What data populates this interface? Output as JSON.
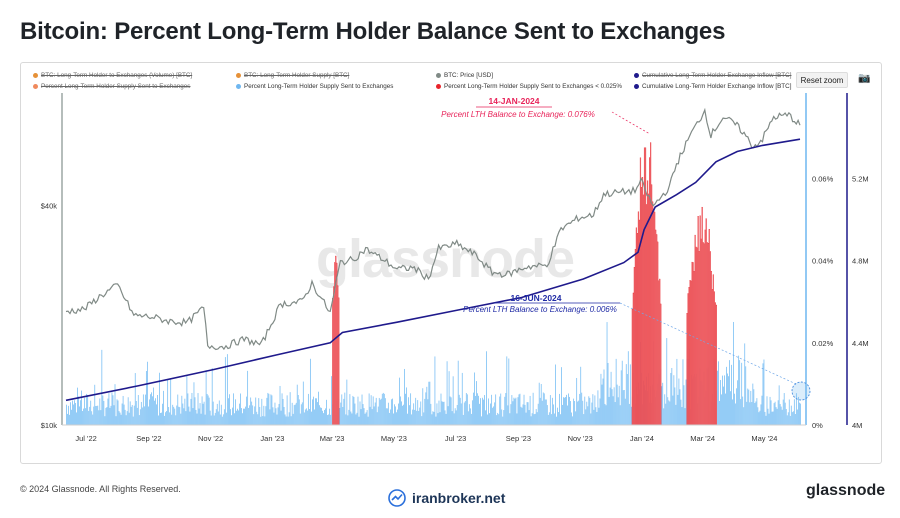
{
  "title": "Bitcoin: Percent Long-Term Holder Balance Sent to Exchanges",
  "legend": {
    "items": [
      {
        "label": "BTC: Long-Term Holder to Exchanges (Volume) [BTC]",
        "color": "#e69138",
        "hidden": true
      },
      {
        "label": "BTC: Long-Term Holder Supply [BTC]",
        "color": "#e69138",
        "hidden": true
      },
      {
        "label": "BTC: Price [USD]",
        "color": "#808a86",
        "hidden": false
      },
      {
        "label": "Cumulative Long-Term Holder Exchange Inflow [BTC]",
        "color": "#1f1a8c",
        "hidden": true
      },
      {
        "label": "Percent Long-Term Holder Supply Sent to Exchanges",
        "color": "#f08a5d",
        "hidden": true
      },
      {
        "label": "Percent Long-Term Holder Supply Sent to Exchanges",
        "color": "#6fb7f0",
        "hidden": false
      },
      {
        "label": "Percent Long-Term Holder Supply Sent to Exchanges < 0.025%",
        "color": "#e8242b",
        "hidden": false
      },
      {
        "label": "Cumulative Long-Term Holder Exchange Inflow [BTC]",
        "color": "#1f1a8c",
        "hidden": false
      }
    ]
  },
  "toolbar": {
    "reset_label": "Reset zoom",
    "camera_icon": "camera-icon"
  },
  "watermark": "glassnode",
  "annotations": [
    {
      "date": "14-JAN-2024",
      "text": "Percent LTH Balance to Exchange: 0.076%",
      "color": "#e8245a"
    },
    {
      "date": "16-JUN-2024",
      "text": "Percent LTH Balance to Exchange: 0.006%",
      "color": "#1f2aa5"
    }
  ],
  "footer": {
    "copyright": "© 2024 Glassnode. All Rights Reserved.",
    "center_logo": "iranbroker.net",
    "brand": "glassnode"
  },
  "chart_data": {
    "type": "bar",
    "x_ticks": [
      "Jul '22",
      "Sep '22",
      "Nov '22",
      "Jan '23",
      "Mar '23",
      "May '23",
      "Jul '23",
      "Sep '23",
      "Nov '23",
      "Jan '24",
      "Mar '24",
      "May '24"
    ],
    "x_range": [
      "2022-06-22",
      "2024-06-16"
    ],
    "price_axis": {
      "ticks": [
        "$10k",
        "$40k"
      ],
      "scale": "log",
      "range": [
        10000,
        80000
      ]
    },
    "percent_axis": {
      "ticks": [
        "0%",
        "0.02%",
        "0.04%",
        "0.06%"
      ],
      "range": [
        0,
        0.08
      ]
    },
    "cumulative_axis": {
      "ticks": [
        "4M",
        "4.4M",
        "4.8M",
        "5.2M"
      ],
      "range": [
        4000000,
        5600000
      ]
    },
    "series": [
      {
        "name": "BTC: Price [USD]",
        "color": "#808a86",
        "points": [
          [
            "2022-06-22",
            20500
          ],
          [
            "2022-07-10",
            20800
          ],
          [
            "2022-07-25",
            22500
          ],
          [
            "2022-08-12",
            24200
          ],
          [
            "2022-08-28",
            20000
          ],
          [
            "2022-09-15",
            19800
          ],
          [
            "2022-10-01",
            19300
          ],
          [
            "2022-10-20",
            19100
          ],
          [
            "2022-11-05",
            21000
          ],
          [
            "2022-11-09",
            16500
          ],
          [
            "2022-11-25",
            16400
          ],
          [
            "2022-12-15",
            17200
          ],
          [
            "2023-01-01",
            16600
          ],
          [
            "2023-01-20",
            21500
          ],
          [
            "2023-02-10",
            21800
          ],
          [
            "2023-02-20",
            24500
          ],
          [
            "2023-03-10",
            20300
          ],
          [
            "2023-03-20",
            28000
          ],
          [
            "2023-04-01",
            28400
          ],
          [
            "2023-04-14",
            30400
          ],
          [
            "2023-05-01",
            28500
          ],
          [
            "2023-05-15",
            26800
          ],
          [
            "2023-06-01",
            27000
          ],
          [
            "2023-06-15",
            25200
          ],
          [
            "2023-06-25",
            30500
          ],
          [
            "2023-07-13",
            31400
          ],
          [
            "2023-08-01",
            29200
          ],
          [
            "2023-08-17",
            26200
          ],
          [
            "2023-09-01",
            25900
          ],
          [
            "2023-09-20",
            27200
          ],
          [
            "2023-10-10",
            27400
          ],
          [
            "2023-10-24",
            34500
          ],
          [
            "2023-11-10",
            37000
          ],
          [
            "2023-11-25",
            37800
          ],
          [
            "2023-12-05",
            43000
          ],
          [
            "2023-12-20",
            43500
          ],
          [
            "2024-01-05",
            44000
          ],
          [
            "2024-01-11",
            46600
          ],
          [
            "2024-01-23",
            39800
          ],
          [
            "2024-02-08",
            45000
          ],
          [
            "2024-02-15",
            52000
          ],
          [
            "2024-02-28",
            62000
          ],
          [
            "2024-03-14",
            73000
          ],
          [
            "2024-03-20",
            62500
          ],
          [
            "2024-04-01",
            70000
          ],
          [
            "2024-04-13",
            67000
          ],
          [
            "2024-04-20",
            64000
          ],
          [
            "2024-05-01",
            58000
          ],
          [
            "2024-05-10",
            61000
          ],
          [
            "2024-05-21",
            70000
          ],
          [
            "2024-06-05",
            71000
          ],
          [
            "2024-06-16",
            66500
          ]
        ]
      },
      {
        "name": "Cumulative Long-Term Holder Exchange Inflow [BTC]",
        "color": "#1f1a8c",
        "points": [
          [
            "2022-06-22",
            4120000
          ],
          [
            "2022-09-01",
            4190000
          ],
          [
            "2022-11-15",
            4270000
          ],
          [
            "2023-01-15",
            4340000
          ],
          [
            "2023-03-10",
            4400000
          ],
          [
            "2023-03-22",
            4450000
          ],
          [
            "2023-05-15",
            4500000
          ],
          [
            "2023-07-15",
            4560000
          ],
          [
            "2023-09-15",
            4620000
          ],
          [
            "2023-11-15",
            4710000
          ],
          [
            "2023-12-25",
            4790000
          ],
          [
            "2024-01-08",
            4840000
          ],
          [
            "2024-01-14",
            4950000
          ],
          [
            "2024-01-25",
            5060000
          ],
          [
            "2024-02-15",
            5120000
          ],
          [
            "2024-03-05",
            5180000
          ],
          [
            "2024-03-25",
            5280000
          ],
          [
            "2024-04-15",
            5330000
          ],
          [
            "2024-05-10",
            5360000
          ],
          [
            "2024-06-16",
            5390000
          ]
        ]
      },
      {
        "name": "Percent Long-Term Holder Supply Sent to Exchanges",
        "color": "#6fb7f0",
        "description": "daily percent values, mostly 0.002%–0.015%"
      },
      {
        "name": "Percent Long-Term Holder Supply Sent to Exchanges < 0.025%",
        "color": "#e8242b",
        "spikes": [
          {
            "start": "2023-03-12",
            "end": "2023-03-18",
            "peak": 0.039
          },
          {
            "start": "2024-01-02",
            "end": "2024-01-30",
            "peak": 0.076
          },
          {
            "start": "2024-02-25",
            "end": "2024-03-25",
            "peak": 0.054
          }
        ]
      }
    ]
  }
}
